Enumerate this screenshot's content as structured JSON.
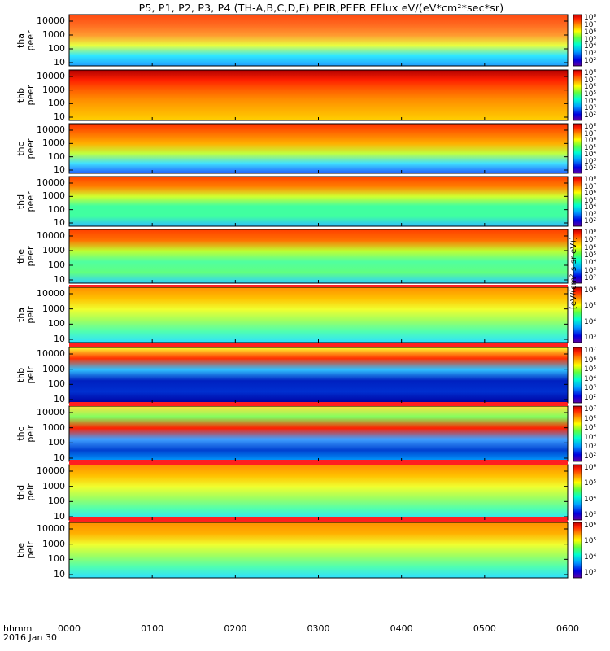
{
  "title": "P5, P1, P2, P3, P4 (TH-A,B,C,D,E) PEIR,PEER EFlux eV/(eV*cm²*sec*sr)",
  "time_label": "hhmm",
  "date_label": "2016 Jan 30",
  "unit_label": "[eV/(cm²-s-sr-eV)]",
  "chart_data": {
    "type": "heatmap",
    "x_ticks": [
      "0000",
      "0100",
      "0200",
      "0300",
      "0400",
      "0500",
      "0600"
    ],
    "y_scale": "log",
    "y_ticks": [
      "10",
      "100",
      "1000",
      "10000"
    ],
    "panels": [
      {
        "name": "tha peer",
        "cb_ticks": [
          "10⁸",
          "10⁷",
          "10⁶",
          "10⁵",
          "10⁴",
          "10³",
          "10²"
        ]
      },
      {
        "name": "thb peer",
        "cb_ticks": [
          "10⁸",
          "10⁷",
          "10⁶",
          "10⁵",
          "10⁴",
          "10³",
          "10²"
        ]
      },
      {
        "name": "thc peer",
        "cb_ticks": [
          "10⁸",
          "10⁷",
          "10⁶",
          "10⁵",
          "10⁴",
          "10³",
          "10²"
        ]
      },
      {
        "name": "thd peer",
        "cb_ticks": [
          "10⁸",
          "10⁷",
          "10⁶",
          "10⁵",
          "10⁴",
          "10³",
          "10²"
        ]
      },
      {
        "name": "the peer",
        "cb_ticks": [
          "10⁸",
          "10⁷",
          "10⁶",
          "10⁵",
          "10⁴",
          "10³",
          "10²"
        ]
      },
      {
        "name": "tha peir",
        "cb_ticks": [
          "10⁶",
          "10⁵",
          "10⁴",
          "10³"
        ]
      },
      {
        "name": "thb peir",
        "cb_ticks": [
          "10⁷",
          "10⁶",
          "10⁵",
          "10⁴",
          "10³",
          "10²"
        ]
      },
      {
        "name": "thc peir",
        "cb_ticks": [
          "10⁷",
          "10⁶",
          "10⁵",
          "10⁴",
          "10³",
          "10²"
        ]
      },
      {
        "name": "thd peir",
        "cb_ticks": [
          "10⁶",
          "10⁵",
          "10⁴",
          "10³"
        ]
      },
      {
        "name": "the peir",
        "cb_ticks": [
          "10⁶",
          "10⁵",
          "10⁴",
          "10³"
        ]
      }
    ]
  },
  "colors": {
    "colorbar": [
      "#0000a0",
      "#0050ff",
      "#00c8ff",
      "#30ff90",
      "#c0ff30",
      "#ffe000",
      "#ff8000",
      "#ff2000",
      "#b00000"
    ],
    "axis": "#000000"
  }
}
